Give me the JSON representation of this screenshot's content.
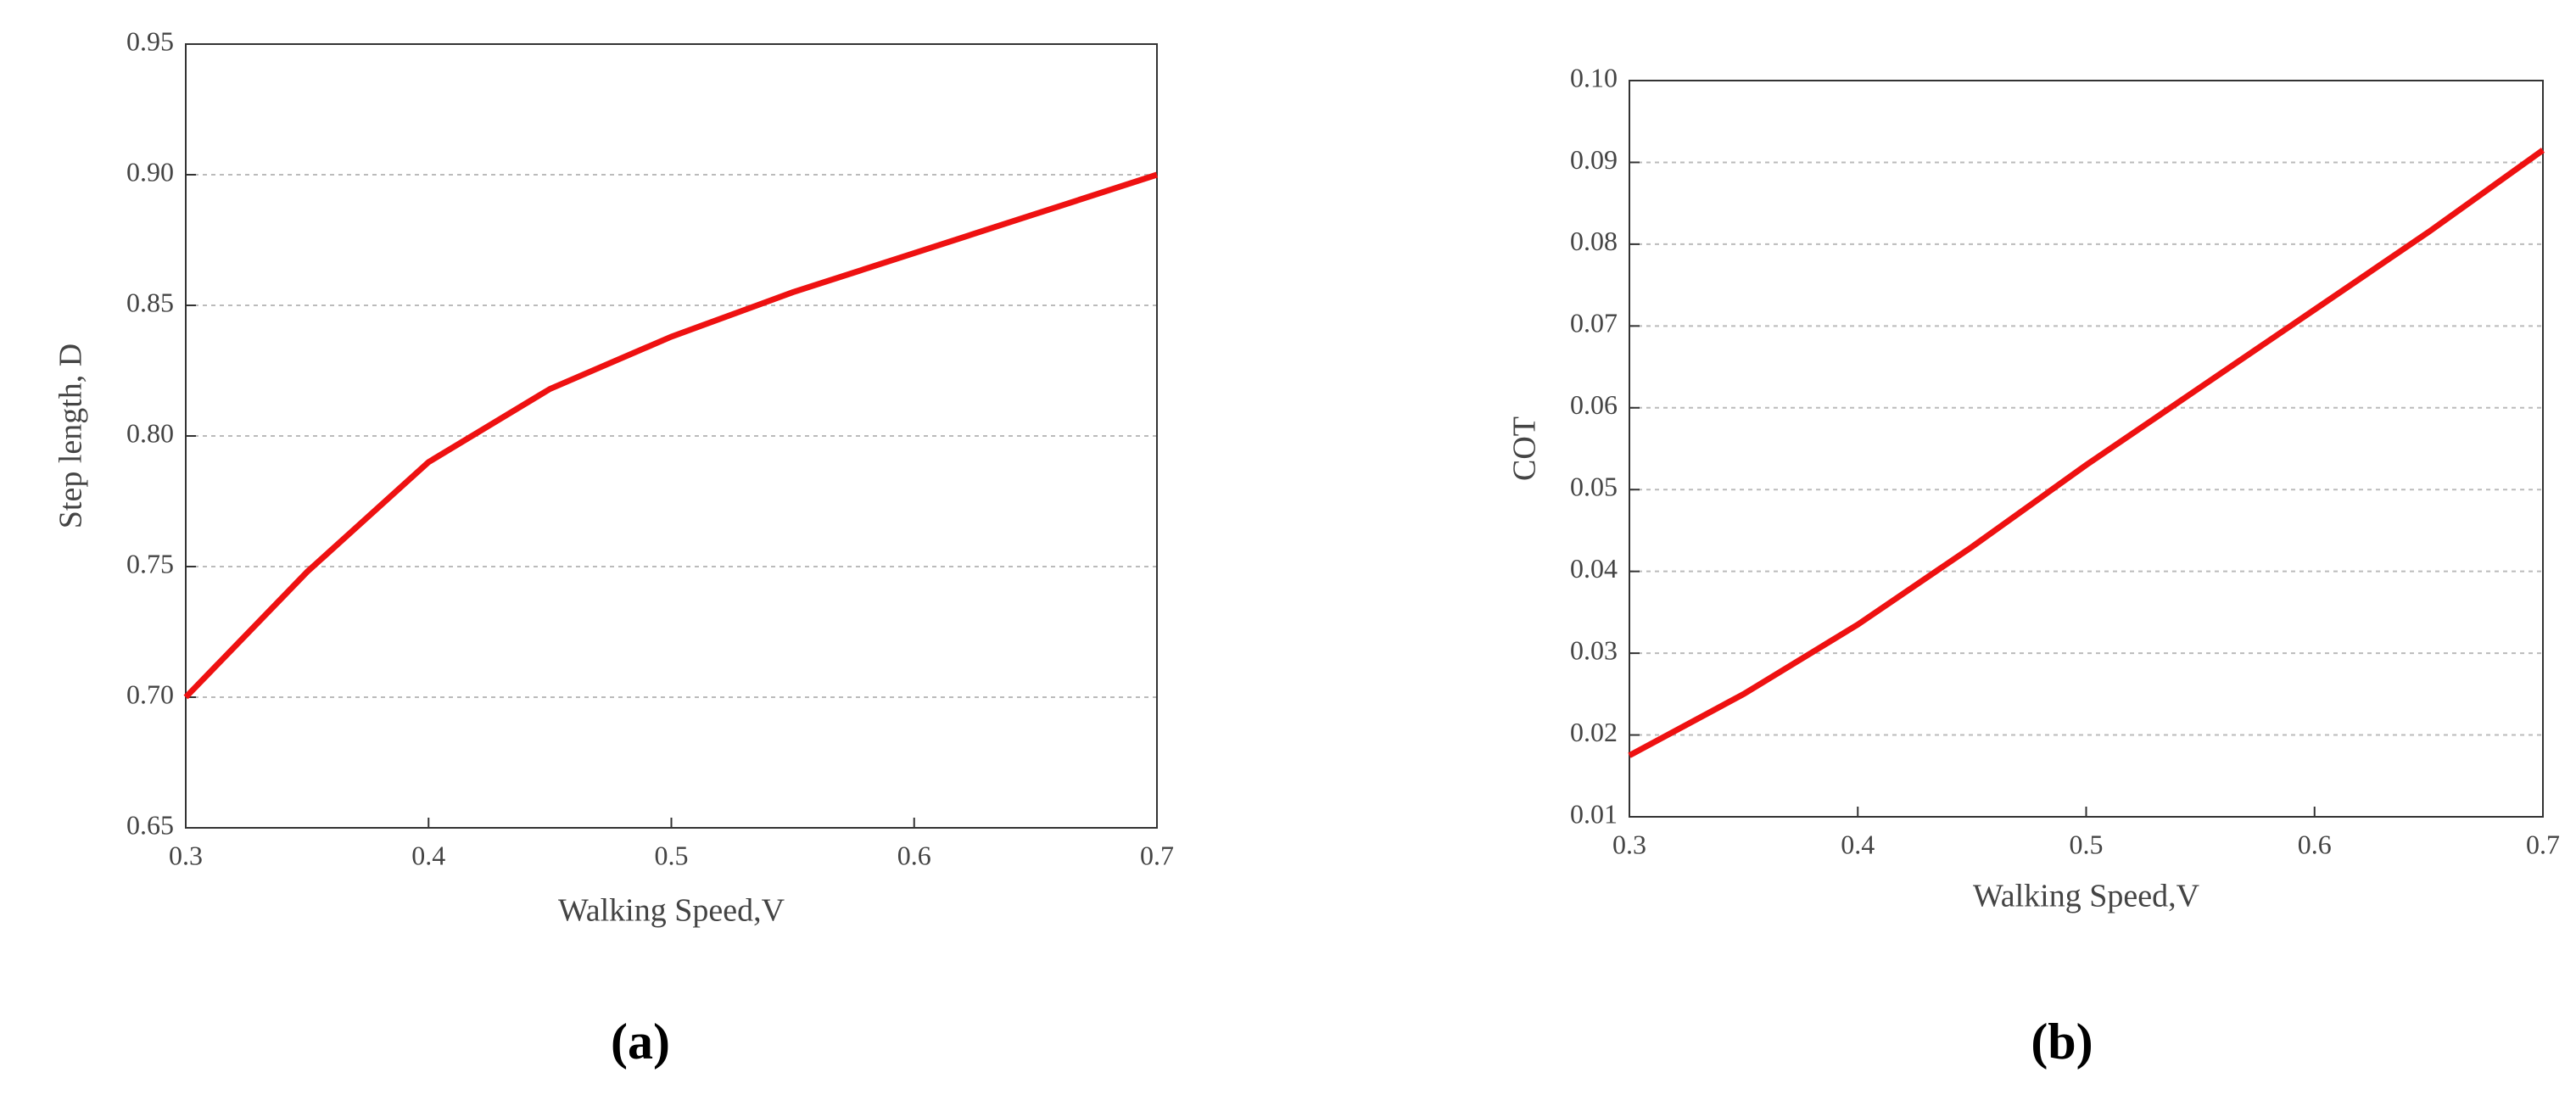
{
  "chart_data": [
    {
      "type": "line",
      "label": "(a)",
      "xlabel": "Walking Speed,V",
      "ylabel": "Step length, D",
      "x": [
        0.3,
        0.35,
        0.4,
        0.45,
        0.5,
        0.55,
        0.6,
        0.65,
        0.7
      ],
      "series": [
        {
          "color": "#ee1111",
          "values": [
            0.7,
            0.748,
            0.79,
            0.818,
            0.838,
            0.855,
            0.87,
            0.885,
            0.9
          ]
        }
      ],
      "xlim": [
        0.3,
        0.7
      ],
      "xticks": [
        0.3,
        0.4,
        0.5,
        0.6,
        0.7
      ],
      "ylim": [
        0.65,
        0.95
      ],
      "yticks": [
        0.65,
        {
          "value": 0.7,
          "label": "0.70"
        },
        0.75,
        {
          "value": 0.8,
          "label": "0.80"
        },
        0.85,
        {
          "value": 0.9,
          "label": "0.90"
        },
        0.95
      ],
      "grid": true
    },
    {
      "type": "line",
      "label": "(b)",
      "xlabel": "Walking Speed,V",
      "ylabel": "COT",
      "x": [
        0.3,
        0.35,
        0.4,
        0.45,
        0.5,
        0.55,
        0.6,
        0.65,
        0.7
      ],
      "series": [
        {
          "color": "#ee1111",
          "values": [
            0.0175,
            0.025,
            0.0335,
            0.043,
            0.053,
            0.0625,
            0.072,
            0.0815,
            0.0915
          ]
        }
      ],
      "xlim": [
        0.3,
        0.7
      ],
      "xticks": [
        0.3,
        0.4,
        0.5,
        0.6,
        0.7
      ],
      "ylim": [
        0.01,
        0.1
      ],
      "yticks": [
        0.01,
        0.02,
        0.03,
        0.04,
        0.05,
        0.06,
        0.07,
        0.08,
        0.09,
        {
          "value": 0.1,
          "label": "0.10"
        }
      ],
      "grid": true
    }
  ]
}
